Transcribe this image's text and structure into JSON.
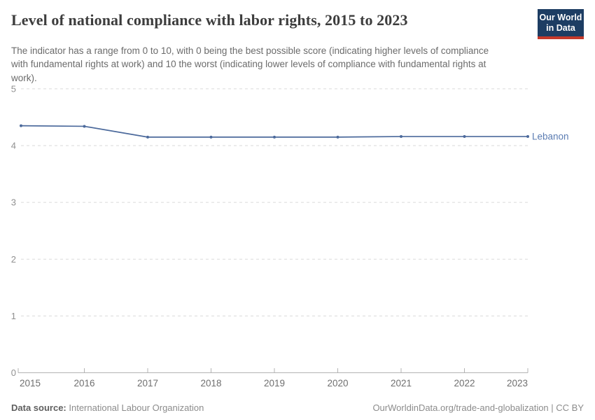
{
  "header": {
    "title": "Level of national compliance with labor rights, 2015 to 2023",
    "subtitle": "The indicator has a range from 0 to 10, with 0 being the best possible score (indicating higher levels of compliance with fundamental rights at work) and 10 the worst (indicating lower levels of compliance with fundamental rights at work)."
  },
  "logo": {
    "line1": "Our World",
    "line2": "in Data",
    "bg_color": "#1d3d63",
    "accent_color": "#c5392b"
  },
  "chart_data": {
    "type": "line",
    "title": "Level of national compliance with labor rights, 2015 to 2023",
    "x": [
      2015,
      2016,
      2017,
      2018,
      2019,
      2020,
      2021,
      2022,
      2023
    ],
    "series": [
      {
        "name": "Lebanon",
        "color": "#4c6a9c",
        "values": [
          4.35,
          4.34,
          4.15,
          4.15,
          4.15,
          4.15,
          4.16,
          4.16,
          4.16
        ]
      }
    ],
    "xlabel": "",
    "ylabel": "",
    "xlim": [
      2015,
      2023
    ],
    "ylim": [
      0,
      5
    ],
    "x_ticks": [
      2015,
      2016,
      2017,
      2018,
      2019,
      2020,
      2021,
      2022,
      2023
    ],
    "y_ticks": [
      0,
      1,
      2,
      3,
      4,
      5
    ],
    "grid": "horizontal-dashed",
    "legend_position": "line-end-label",
    "entity_label": "Lebanon",
    "grid_color": "#dadada",
    "axis_color": "#b3b3b3"
  },
  "footer": {
    "source_label": "Data source:",
    "source_value": "International Labour Organization",
    "right_text": "OurWorldinData.org/trade-and-globalization | CC BY"
  }
}
